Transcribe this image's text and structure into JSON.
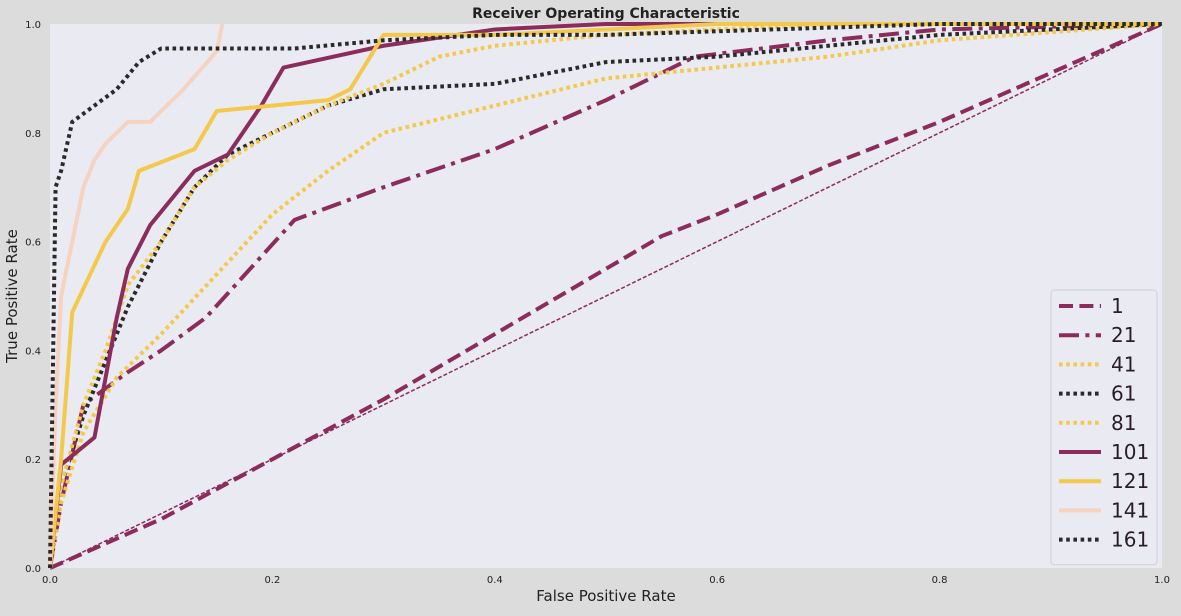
{
  "chart_data": {
    "type": "line",
    "title": "Receiver Operating Characteristic",
    "xlabel": "False Positive Rate",
    "ylabel": "True Positive Rate",
    "xlim": [
      0.0,
      1.0
    ],
    "ylim": [
      0.0,
      1.0
    ],
    "xticks": [
      "0.0",
      "0.2",
      "0.4",
      "0.6",
      "0.8",
      "1.0"
    ],
    "yticks": [
      "0.0",
      "0.2",
      "0.4",
      "0.6",
      "0.8",
      "1.0"
    ],
    "grid": false,
    "legend_placement": "lower-right",
    "background_color": "#eaeaf2",
    "diagonal": {
      "x": [
        0.0,
        1.0
      ],
      "y": [
        0.0,
        1.0
      ],
      "color": "#8b2c5c",
      "style": "dashed"
    },
    "series": [
      {
        "name": "1",
        "color": "#8b2c5c",
        "style": "dashed",
        "x": [
          0.0,
          0.1,
          0.2,
          0.3,
          0.4,
          0.5,
          0.55,
          0.6,
          0.7,
          0.8,
          0.9,
          1.0
        ],
        "y": [
          0.0,
          0.09,
          0.2,
          0.31,
          0.43,
          0.55,
          0.61,
          0.65,
          0.74,
          0.82,
          0.91,
          1.0
        ]
      },
      {
        "name": "21",
        "color": "#8b2c5c",
        "style": "dashdot",
        "x": [
          0.0,
          0.01,
          0.03,
          0.07,
          0.1,
          0.14,
          0.18,
          0.22,
          0.3,
          0.4,
          0.5,
          0.58,
          0.62,
          0.7,
          0.8,
          1.0
        ],
        "y": [
          0.0,
          0.12,
          0.3,
          0.36,
          0.4,
          0.46,
          0.55,
          0.64,
          0.7,
          0.77,
          0.86,
          0.94,
          0.95,
          0.97,
          0.99,
          1.0
        ]
      },
      {
        "name": "41",
        "color": "#f4c84a",
        "style": "dotted",
        "x": [
          0.0,
          0.01,
          0.03,
          0.06,
          0.1,
          0.15,
          0.2,
          0.25,
          0.3,
          0.4,
          0.5,
          0.6,
          0.7,
          0.8,
          1.0
        ],
        "y": [
          0.0,
          0.12,
          0.25,
          0.35,
          0.43,
          0.54,
          0.65,
          0.73,
          0.8,
          0.85,
          0.9,
          0.92,
          0.94,
          0.97,
          1.0
        ]
      },
      {
        "name": "61",
        "color": "#2a2a2a",
        "style": "dotted",
        "x": [
          0.0,
          0.01,
          0.03,
          0.05,
          0.07,
          0.1,
          0.13,
          0.16,
          0.2,
          0.25,
          0.3,
          0.4,
          0.5,
          0.6,
          0.7,
          0.8,
          1.0
        ],
        "y": [
          0.0,
          0.15,
          0.28,
          0.38,
          0.48,
          0.6,
          0.7,
          0.76,
          0.8,
          0.85,
          0.88,
          0.89,
          0.93,
          0.94,
          0.96,
          0.98,
          1.0
        ]
      },
      {
        "name": "81",
        "color": "#f4c84a",
        "style": "dotted",
        "x": [
          0.0,
          0.01,
          0.03,
          0.05,
          0.07,
          0.1,
          0.13,
          0.16,
          0.2,
          0.25,
          0.3,
          0.35,
          0.4,
          0.5,
          0.6,
          0.7,
          1.0
        ],
        "y": [
          0.0,
          0.15,
          0.3,
          0.4,
          0.52,
          0.6,
          0.7,
          0.75,
          0.8,
          0.85,
          0.89,
          0.94,
          0.96,
          0.98,
          0.99,
          1.0,
          1.0
        ]
      },
      {
        "name": "101",
        "color": "#8b2c5c",
        "style": "solid",
        "x": [
          0.0,
          0.01,
          0.04,
          0.06,
          0.07,
          0.09,
          0.13,
          0.16,
          0.19,
          0.21,
          0.3,
          0.4,
          0.5,
          0.6,
          1.0
        ],
        "y": [
          0.0,
          0.19,
          0.24,
          0.46,
          0.55,
          0.63,
          0.73,
          0.76,
          0.85,
          0.92,
          0.96,
          0.99,
          1.0,
          1.0,
          1.0
        ]
      },
      {
        "name": "121",
        "color": "#f4c84a",
        "style": "solid",
        "x": [
          0.0,
          0.01,
          0.02,
          0.05,
          0.07,
          0.08,
          0.13,
          0.15,
          0.2,
          0.25,
          0.27,
          0.3,
          0.4,
          0.5,
          0.6,
          1.0
        ],
        "y": [
          0.0,
          0.2,
          0.47,
          0.6,
          0.66,
          0.73,
          0.77,
          0.84,
          0.85,
          0.86,
          0.88,
          0.98,
          0.98,
          0.99,
          1.0,
          1.0
        ]
      },
      {
        "name": "141",
        "color": "#f6d2c0",
        "style": "solid",
        "x": [
          0.0,
          0.005,
          0.01,
          0.02,
          0.03,
          0.04,
          0.05,
          0.07,
          0.09,
          0.12,
          0.15,
          0.155
        ],
        "y": [
          0.0,
          0.3,
          0.5,
          0.6,
          0.7,
          0.75,
          0.78,
          0.82,
          0.82,
          0.88,
          0.95,
          1.0
        ]
      },
      {
        "name": "161",
        "color": "#2a2a2a",
        "style": "dotted",
        "x": [
          0.0,
          0.005,
          0.01,
          0.02,
          0.04,
          0.06,
          0.08,
          0.1,
          0.15,
          0.22,
          0.3,
          0.4,
          0.5,
          0.8,
          1.0
        ],
        "y": [
          0.0,
          0.7,
          0.73,
          0.82,
          0.85,
          0.88,
          0.93,
          0.955,
          0.955,
          0.955,
          0.97,
          0.98,
          0.98,
          1.0,
          1.0
        ]
      }
    ]
  }
}
